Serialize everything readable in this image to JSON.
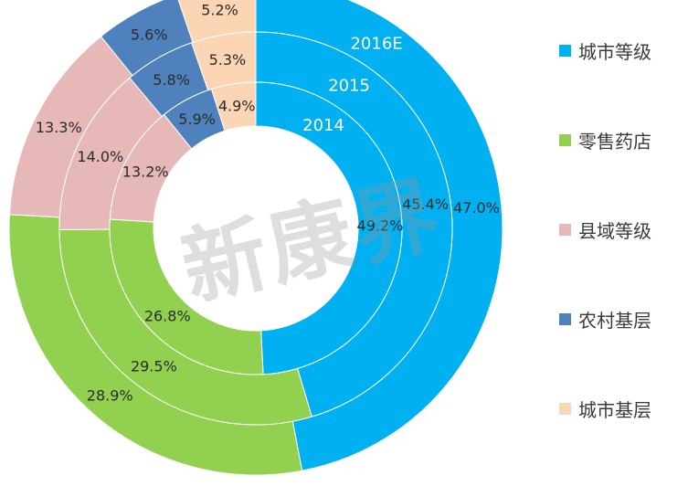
{
  "watermark_text": "新康界",
  "chart_data": {
    "type": "donut",
    "title": "",
    "categories": [
      "城市等级",
      "零售药店",
      "县域等级",
      "农村基层",
      "城市基层"
    ],
    "colors": [
      "#00B0F0",
      "#92D050",
      "#E6B9B8",
      "#4F81BD",
      "#FCD5B5"
    ],
    "rings": [
      {
        "name": "2016E",
        "values": [
          47.0,
          28.9,
          13.3,
          5.6,
          5.2
        ],
        "labels": [
          "47.0%",
          "28.9%",
          "13.3%",
          "5.6%",
          "5.2%"
        ]
      },
      {
        "name": "2015",
        "values": [
          45.4,
          29.5,
          14.0,
          5.8,
          5.3
        ],
        "labels": [
          "45.4%",
          "29.5%",
          "14.0%",
          "5.8%",
          "5.3%"
        ]
      },
      {
        "name": "2014",
        "values": [
          49.2,
          26.8,
          13.2,
          5.9,
          4.9
        ],
        "labels": [
          "49.2%",
          "26.8%",
          "13.2%",
          "5.9%",
          "4.9%"
        ]
      }
    ],
    "legend_position": "right"
  }
}
